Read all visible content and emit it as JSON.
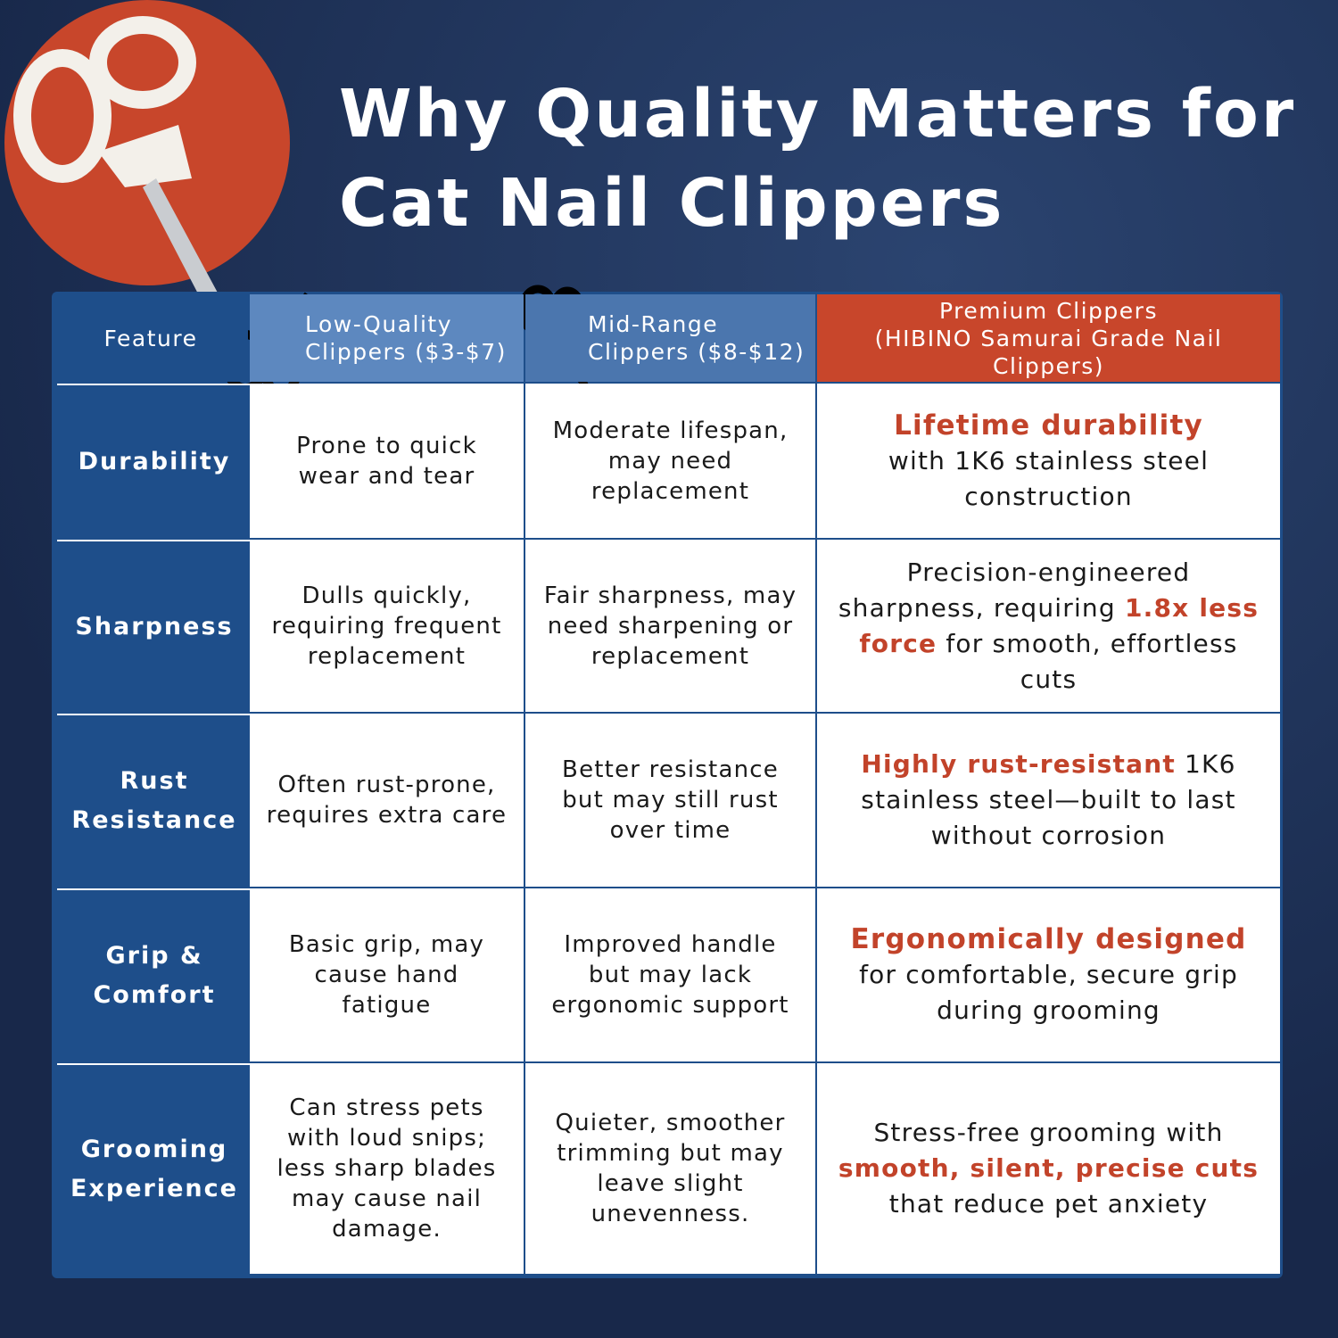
{
  "header": {
    "title": [
      "Why Quality Matters for",
      "Cat Nail Clippers"
    ]
  },
  "table": {
    "columns": [
      [
        "Feature"
      ],
      [
        "Low-Quality",
        "Clippers ($3-$7)"
      ],
      [
        "Mid-Range",
        "Clippers ($8-$12)"
      ],
      [
        "Premium Clippers",
        "(HIBINO Samurai Grade Nail Clippers)"
      ]
    ],
    "rows": [
      {
        "feature": [
          "Durability"
        ],
        "cells": [
          [
            {
              "text": "Prone to quick wear and tear"
            }
          ],
          [
            {
              "text": "Moderate lifespan, may need replacement"
            }
          ],
          [
            {
              "text": "Lifetime durability",
              "highlight": true
            },
            {
              "text": "with 1K6 stainless steel construction"
            }
          ]
        ]
      },
      {
        "feature": [
          "Sharpness"
        ],
        "cells": [
          [
            {
              "text": "Dulls quickly, requiring frequent replacement"
            }
          ],
          [
            {
              "text": "Fair sharpness, may need sharpening or replacement"
            }
          ],
          [
            {
              "text": "Precision-engineered sharpness, requiring"
            },
            {
              "text": "1.8x less force",
              "highlight": true
            },
            {
              "text": "for smooth, effortless cuts"
            }
          ]
        ]
      },
      {
        "feature": [
          "Rust",
          "Resistance"
        ],
        "cells": [
          [
            {
              "text": "Often rust-prone, requires extra care"
            }
          ],
          [
            {
              "text": "Better resistance but may still rust over time"
            }
          ],
          [
            {
              "text": "Highly rust-resistant",
              "highlight": true
            },
            {
              "text": "1K6 stainless steel—built to last without corrosion"
            }
          ]
        ]
      },
      {
        "feature": [
          "Grip &",
          "Comfort"
        ],
        "cells": [
          [
            {
              "text": "Basic grip, may cause hand fatigue"
            }
          ],
          [
            {
              "text": "Improved handle but may lack ergonomic support"
            }
          ],
          [
            {
              "text": "Ergonomically designed",
              "highlight": true
            },
            {
              "text": "for comfortable, secure grip during grooming"
            }
          ]
        ]
      },
      {
        "feature": [
          "Grooming",
          "Experience"
        ],
        "cells": [
          [
            {
              "text": "Can stress pets with loud snips; less sharp blades may cause nail damage."
            }
          ],
          [
            {
              "text": "Quieter, smoother trimming but may leave slight unevenness."
            }
          ],
          [
            {
              "text": "Stress-free grooming with"
            },
            {
              "text": "smooth, silent, precise cuts",
              "highlight": true
            },
            {
              "text": "that reduce pet anxiety"
            }
          ]
        ]
      }
    ]
  }
}
